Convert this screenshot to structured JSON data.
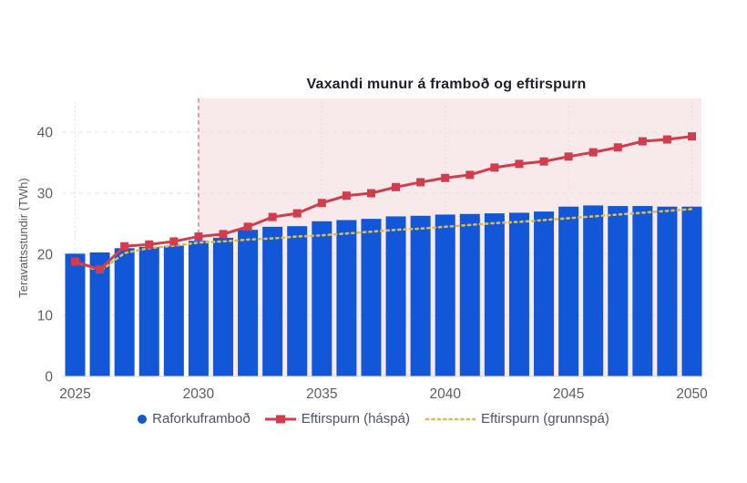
{
  "title": "Vaxandi munur á framboð og eftirspurn",
  "legend": {
    "items": [
      {
        "label": "Raforkuframboð",
        "icon": "circle-icon",
        "color": "#1257d8"
      },
      {
        "label": "Eftirspurn (háspá)",
        "icon": "line-square-icon",
        "color": "#d13d4c"
      },
      {
        "label": "Eftirspurn (grunnspá)",
        "icon": "dotted-line-icon",
        "color": "#debb48"
      }
    ]
  },
  "chart_data": {
    "type": "bar",
    "subtype": "combo bar + line",
    "title": "Vaxandi munur á framboð og eftirspurn",
    "xlabel": "",
    "ylabel": "Teravattsstundir (TWh)",
    "ylim": [
      0,
      45.5
    ],
    "yticks": [
      0,
      10,
      20,
      30,
      40
    ],
    "xticks": [
      2025,
      2030,
      2035,
      2040,
      2045,
      2050
    ],
    "x": [
      2025,
      2026,
      2027,
      2028,
      2029,
      2030,
      2031,
      2032,
      2033,
      2034,
      2035,
      2036,
      2037,
      2038,
      2039,
      2040,
      2041,
      2042,
      2043,
      2044,
      2045,
      2046,
      2047,
      2048,
      2049,
      2050
    ],
    "series": [
      {
        "name": "Raforkuframboð",
        "type": "bar",
        "color": "#1257d8",
        "values": [
          20.1,
          20.3,
          21.0,
          21.2,
          21.4,
          22.2,
          22.7,
          24.0,
          24.5,
          24.6,
          25.4,
          25.6,
          25.8,
          26.2,
          26.3,
          26.5,
          26.6,
          26.7,
          26.8,
          27.0,
          27.8,
          28.0,
          27.9,
          27.9,
          27.8,
          27.8
        ]
      },
      {
        "name": "Eftirspurn (háspá)",
        "type": "line",
        "marker": "square",
        "color": "#d13d4c",
        "values": [
          18.8,
          17.5,
          21.3,
          21.6,
          22.1,
          22.9,
          23.3,
          24.5,
          26.1,
          26.7,
          28.4,
          29.6,
          30.0,
          31.0,
          31.8,
          32.5,
          33.0,
          34.2,
          34.8,
          35.2,
          36.0,
          36.7,
          37.5,
          38.5,
          38.8,
          39.3
        ]
      },
      {
        "name": "Eftirspurn (grunnspá)",
        "type": "dotted-line",
        "color": "#debb48",
        "values": [
          18.8,
          17.2,
          20.2,
          21.0,
          21.4,
          21.9,
          22.1,
          22.4,
          22.6,
          22.9,
          23.1,
          23.4,
          23.7,
          24.0,
          24.2,
          24.5,
          24.8,
          25.1,
          25.3,
          25.6,
          25.9,
          26.2,
          26.5,
          26.8,
          27.1,
          27.4
        ]
      }
    ],
    "highlight_region": {
      "from": 2030,
      "to": 2050,
      "fill": "#f8e9eb",
      "edge_color": "#e395a2",
      "edge_style": "dashed",
      "note": "shaded area from 2030 onward"
    },
    "grid": true,
    "legend_position": "bottom",
    "colors": {
      "grid_h": "#e4e4e4",
      "grid_v": "#dcdcdc",
      "axis_line": "#d9d9d9",
      "tick_text": "#605e5c",
      "title_text": "#1f1e2e",
      "legend_text": "#4f5266"
    }
  }
}
